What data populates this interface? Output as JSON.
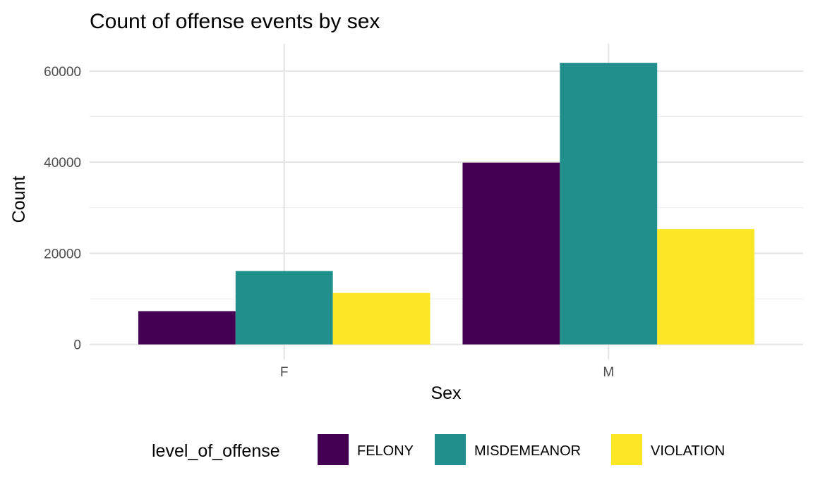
{
  "chart_data": {
    "type": "bar",
    "title": "Count of offense events by sex",
    "xlabel": "Sex",
    "ylabel": "Count",
    "categories": [
      "F",
      "M"
    ],
    "series": [
      {
        "name": "FELONY",
        "values": [
          7300,
          39900
        ],
        "color": "#440154"
      },
      {
        "name": "MISDEMEANOR",
        "values": [
          16100,
          61800
        ],
        "color": "#21908C"
      },
      {
        "name": "VIOLATION",
        "values": [
          11300,
          25300
        ],
        "color": "#FDE725"
      }
    ],
    "yticks": [
      "0",
      "20000",
      "40000",
      "60000"
    ],
    "ylim": [
      -3300,
      66000
    ],
    "legend_title": "level_of_offense",
    "legend_position": "bottom",
    "grid": true,
    "theme": "minimal"
  }
}
